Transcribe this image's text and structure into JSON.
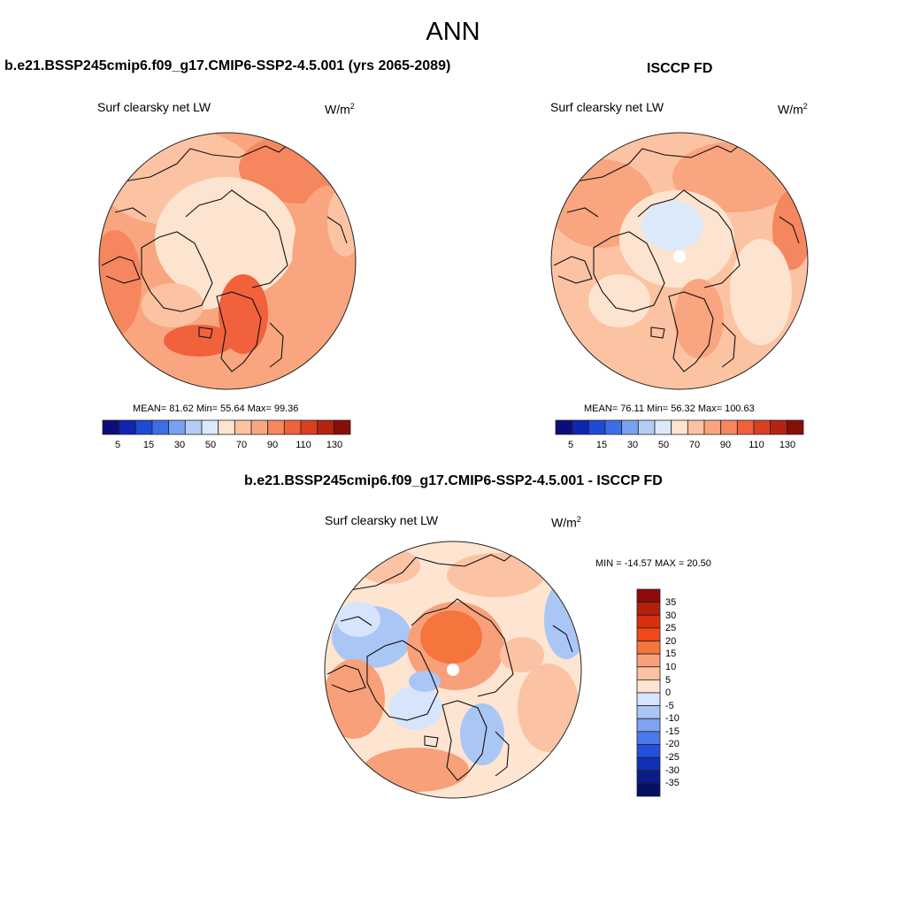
{
  "figure": {
    "title": "ANN",
    "units_base": "W/m",
    "units_exp": "2",
    "panels": [
      {
        "id": "model",
        "title": "b.e21.BSSP245cmip6.f09_g17.CMIP6-SSP2-4.5.001 (yrs 2065-2089)",
        "variable": "Surf clearsky net LW",
        "stats": "MEAN=  81.62   Min=  55.64   Max=  99.36",
        "colorbar_labels": [
          "5",
          "15",
          "30",
          "50",
          "70",
          "90",
          "110",
          "130"
        ]
      },
      {
        "id": "obs",
        "title": "ISCCP FD",
        "variable": "Surf clearsky net LW",
        "stats": "MEAN=  76.11   Min=  56.32   Max=  100.63",
        "colorbar_labels": [
          "5",
          "15",
          "30",
          "50",
          "70",
          "90",
          "110",
          "130"
        ]
      },
      {
        "id": "diff",
        "title": "b.e21.BSSP245cmip6.f09_g17.CMIP6-SSP2-4.5.001 - ISCCP FD",
        "variable": "Surf clearsky net LW",
        "stats": "MIN = -14.57 MAX =  20.50",
        "colorbar_labels": [
          "35",
          "30",
          "25",
          "20",
          "15",
          "10",
          "5",
          "0",
          "-5",
          "-10",
          "-15",
          "-20",
          "-25",
          "-30",
          "-35"
        ]
      }
    ],
    "colors": {
      "abs_scale": [
        "#0b0e7a",
        "#1025b3",
        "#1f4ad6",
        "#3c6ee8",
        "#7aa1f0",
        "#b5cdf5",
        "#dce9fa",
        "#fde4d0",
        "#fcc3a3",
        "#f9a57f",
        "#f6865e",
        "#f0613c",
        "#d9401f",
        "#b52410",
        "#860f08"
      ],
      "diff_scale": [
        "#8c0b0b",
        "#b4200c",
        "#d8300c",
        "#ee4a1a",
        "#f5753c",
        "#f8a07a",
        "#fbc3a3",
        "#fde5d2",
        "#d6e5fb",
        "#aac6f5",
        "#7ea3f0",
        "#4c79ea",
        "#2550dd",
        "#1130b8",
        "#0c1c8a",
        "#060f63"
      ]
    }
  }
}
